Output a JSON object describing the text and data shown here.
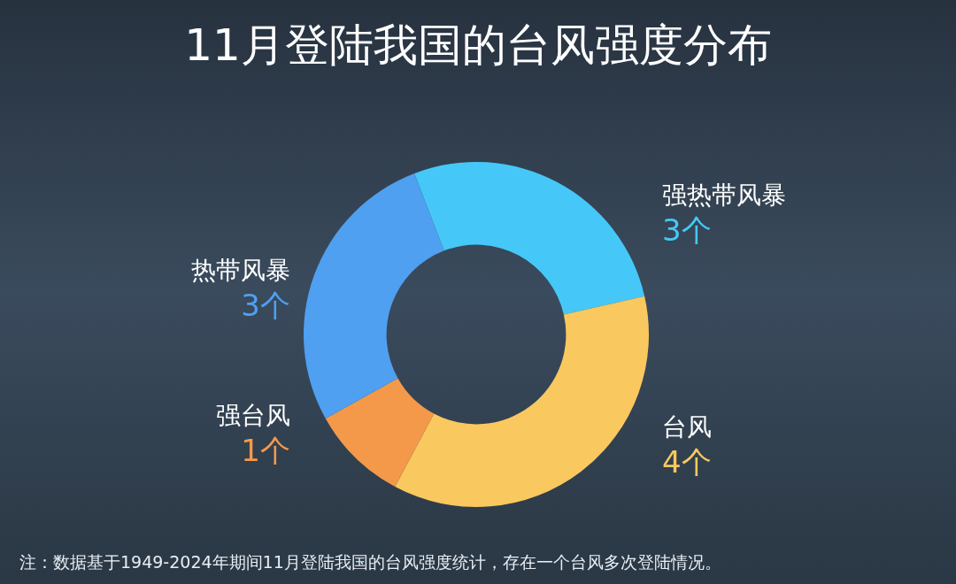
{
  "chart_data": {
    "type": "donut",
    "title": "11月登陆我国的台风强度分布",
    "categories": [
      "强热带风暴",
      "台风",
      "强台风",
      "热带风暴"
    ],
    "values": [
      3,
      4,
      1,
      3
    ],
    "colors": [
      "#45c8f8",
      "#f9c85f",
      "#f4994a",
      "#4fa0f0"
    ],
    "value_labels": [
      "3个",
      "4个",
      "1个",
      "3个"
    ],
    "annotations": [
      "注：数据基于1949-2024年期间11月登陆我国的台风强度统计，存在一个台风多次登陆情况。"
    ]
  }
}
